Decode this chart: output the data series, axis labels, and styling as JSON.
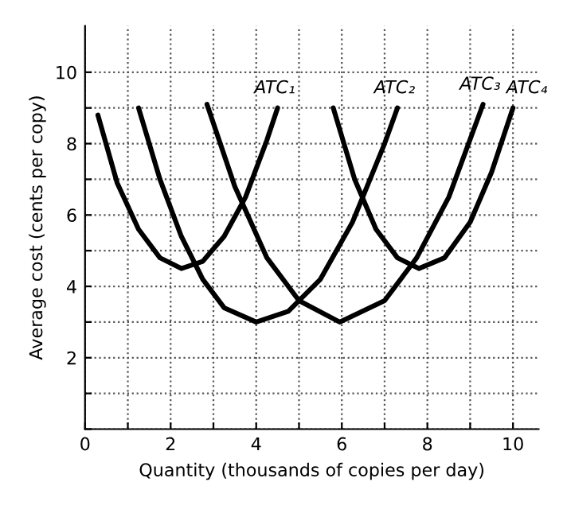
{
  "chart_data": {
    "type": "line",
    "xlabel": "Quantity (thousands of copies per day)",
    "ylabel": "Average cost (cents per copy)",
    "xlim": [
      0,
      10.6
    ],
    "ylim": [
      0,
      11.3
    ],
    "xticks": [
      0,
      {
        "value": 1,
        "label": null
      },
      2,
      {
        "value": 3,
        "label": null
      },
      4,
      {
        "value": 5,
        "label": null
      },
      6,
      {
        "value": 7,
        "label": null
      },
      8,
      {
        "value": 9,
        "label": null
      },
      10
    ],
    "yticks": [
      {
        "value": 0,
        "label": null
      },
      {
        "value": 1,
        "label": null
      },
      2,
      {
        "value": 3,
        "label": null
      },
      4,
      {
        "value": 5,
        "label": null
      },
      6,
      {
        "value": 7,
        "label": null
      },
      8,
      {
        "value": 9,
        "label": null
      },
      10
    ],
    "grid": true,
    "marker": "none",
    "line_style": "solid",
    "series": [
      {
        "name": "ATC₁",
        "color": "#000000",
        "x": [
          0.3,
          0.75,
          1.25,
          1.75,
          2.25,
          2.75,
          3.25,
          3.75,
          4.25,
          4.5
        ],
        "values": [
          8.8,
          6.9,
          5.6,
          4.8,
          4.5,
          4.7,
          5.4,
          6.5,
          8.1,
          9.0
        ]
      },
      {
        "name": "ATC₂",
        "color": "#000000",
        "x": [
          1.25,
          1.75,
          2.25,
          2.75,
          3.25,
          4.0,
          4.75,
          5.5,
          6.25,
          7.0,
          7.3
        ],
        "values": [
          9.0,
          7.0,
          5.4,
          4.2,
          3.4,
          3.0,
          3.3,
          4.2,
          5.8,
          8.0,
          9.0
        ]
      },
      {
        "name": "ATC₃",
        "color": "#000000",
        "x": [
          2.85,
          3.5,
          4.25,
          5.0,
          5.95,
          7.0,
          7.75,
          8.5,
          9.3
        ],
        "values": [
          9.1,
          6.8,
          4.8,
          3.6,
          3.0,
          3.6,
          4.8,
          6.5,
          9.1
        ]
      },
      {
        "name": "ATC₄",
        "color": "#000000",
        "x": [
          5.8,
          6.3,
          6.8,
          7.3,
          7.8,
          8.4,
          9.0,
          9.5,
          10.0
        ],
        "values": [
          9.0,
          7.0,
          5.6,
          4.8,
          4.5,
          4.8,
          5.8,
          7.2,
          9.0
        ]
      }
    ]
  }
}
